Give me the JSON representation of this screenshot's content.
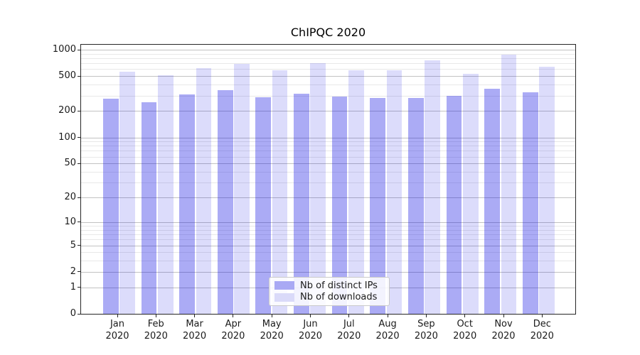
{
  "title": "ChIPQC 2020",
  "chart_data": {
    "type": "bar",
    "title": "ChIPQC 2020",
    "categories": [
      "Jan 2020",
      "Feb 2020",
      "Mar 2020",
      "Apr 2020",
      "May 2020",
      "Jun 2020",
      "Jul 2020",
      "Aug 2020",
      "Sep 2020",
      "Oct 2020",
      "Nov 2020",
      "Dec 2020"
    ],
    "month_labels": [
      "Jan",
      "Feb",
      "Mar",
      "Apr",
      "May",
      "Jun",
      "Jul",
      "Aug",
      "Sep",
      "Oct",
      "Nov",
      "Dec"
    ],
    "year_label": "2020",
    "series": [
      {
        "name": "Nb of distinct IPs",
        "color": "#a9a9f4",
        "bar_fill": "rgba(15,15,225,0.35)",
        "values": [
          278,
          250,
          311,
          346,
          288,
          315,
          293,
          284,
          284,
          298,
          362,
          330
        ]
      },
      {
        "name": "Nb of downloads",
        "color": "#dadaf9",
        "bar_fill": "rgba(15,15,225,0.145)",
        "values": [
          566,
          511,
          614,
          695,
          588,
          702,
          585,
          581,
          753,
          535,
          874,
          640
        ]
      }
    ],
    "yscale": "symlog (log10 of 1+value), 0 at baseline",
    "ylim": [
      0,
      1000
    ],
    "y_major_ticks": [
      0,
      1,
      2,
      5,
      10,
      20,
      50,
      100,
      200,
      500,
      1000
    ],
    "y_minor_ticks": [
      3,
      4,
      6,
      7,
      8,
      9,
      30,
      40,
      60,
      70,
      80,
      90,
      300,
      400,
      600,
      700,
      800,
      900
    ],
    "grid": true,
    "legend_position": "lower center, inside plot"
  },
  "colors": {
    "grid_major": "#c2c2c2",
    "grid_minor": "#e8e8e8",
    "spine": "#262626",
    "text": "#1a1a1a",
    "background": "#ffffff"
  }
}
